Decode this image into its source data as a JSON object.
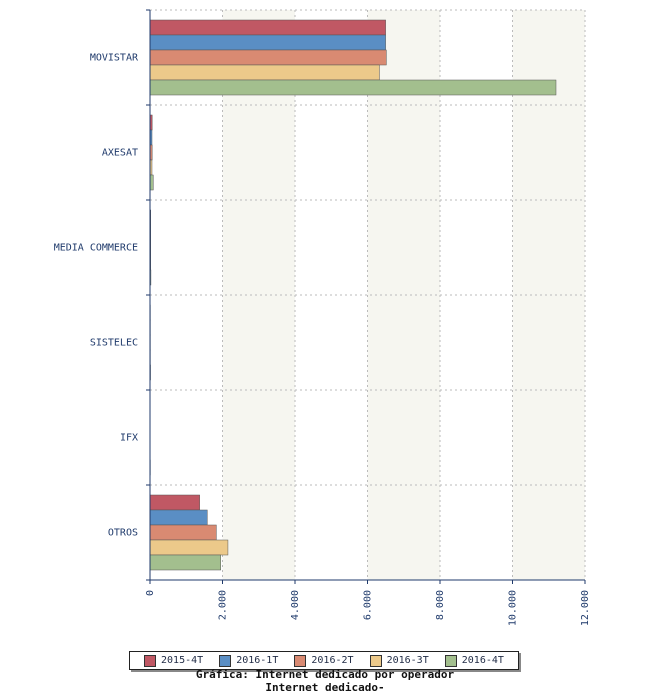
{
  "chart_data": {
    "type": "bar",
    "orientation": "horizontal",
    "categories": [
      "MOVISTAR",
      "AXESAT",
      "MEDIA COMMERCE",
      "SISTELEC",
      "IFX",
      "OTROS"
    ],
    "series": [
      {
        "name": "2015-4T",
        "color": "#c05864",
        "values": [
          6500,
          60,
          20,
          10,
          5,
          1370
        ]
      },
      {
        "name": "2016-1T",
        "color": "#5a8ec4",
        "values": [
          6500,
          55,
          20,
          10,
          5,
          1580
        ]
      },
      {
        "name": "2016-2T",
        "color": "#d98a72",
        "values": [
          6520,
          60,
          20,
          10,
          5,
          1830
        ]
      },
      {
        "name": "2016-3T",
        "color": "#ecc98a",
        "values": [
          6330,
          55,
          20,
          10,
          5,
          2150
        ]
      },
      {
        "name": "2016-4T",
        "color": "#a3bf8e",
        "values": [
          11200,
          90,
          25,
          15,
          10,
          1950
        ]
      }
    ],
    "xticks": [
      "0",
      "2.000",
      "4.000",
      "6.000",
      "8.000",
      "10.000",
      "12.000"
    ],
    "xlim": [
      0,
      12000
    ],
    "grid": true,
    "legend_position": "bottom"
  },
  "caption": {
    "title": "Gráfica: Internet dedicado por operador",
    "subtitle": "Internet dedicado-"
  }
}
